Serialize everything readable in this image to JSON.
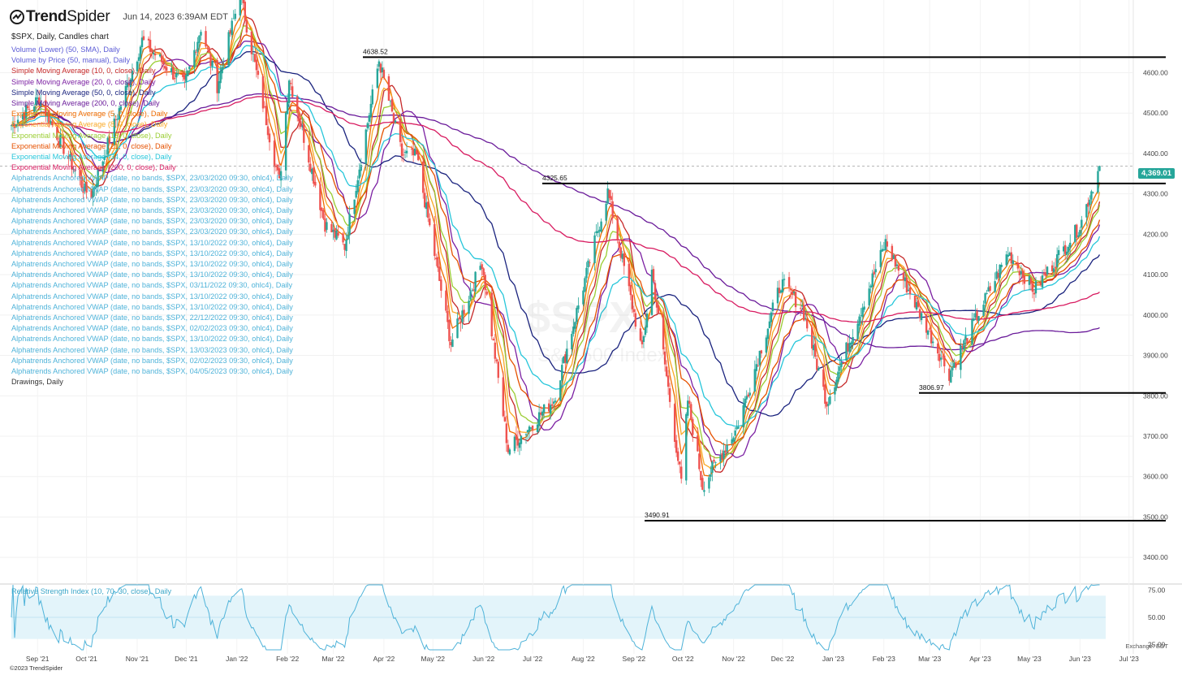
{
  "header": {
    "brand_bold": "Trend",
    "brand_light": "Spider",
    "datetime": "Jun 14, 2023 6:39AM EDT",
    "symbol_line": "$SPX, Daily, Candles chart"
  },
  "studies": [
    {
      "text": "Volume (Lower) (50, SMA), Daily",
      "color": "#5b5bd6"
    },
    {
      "text": "Volume by Price (50, manual), Daily",
      "color": "#5b5bd6"
    },
    {
      "text": "Simple Moving Average (10, 0, close), Daily",
      "color": "#c62828"
    },
    {
      "text": "Simple Moving Average (20, 0, close), Daily",
      "color": "#7b1fa2"
    },
    {
      "text": "Simple Moving Average (50, 0, close), Daily",
      "color": "#1a237e"
    },
    {
      "text": "Simple Moving Average (200, 0, close), Daily",
      "color": "#6a1b9a"
    },
    {
      "text": "Exponential Moving Average (5, 0, close), Daily",
      "color": "#ef6c00"
    },
    {
      "text": "Exponential Moving Average (8, 0, close), Daily",
      "color": "#f9a825"
    },
    {
      "text": "Exponential Moving Average (13, 0, close), Daily",
      "color": "#9acd32"
    },
    {
      "text": "Exponential Moving Average (21, 0, close), Daily",
      "color": "#e65100"
    },
    {
      "text": "Exponential Moving Average (34, 0, close), Daily",
      "color": "#26c6da"
    },
    {
      "text": "Exponential Moving Average (200, 0, close), Daily",
      "color": "#d81b60"
    },
    {
      "text": "Alphatrends Anchored VWAP (date, no bands, $SPX, 23/03/2020 09:30, ohlc4), Daily",
      "color": "#4fb3d9"
    },
    {
      "text": "Alphatrends Anchored VWAP (date, no bands, $SPX, 23/03/2020 09:30, ohlc4), Daily",
      "color": "#4fb3d9"
    },
    {
      "text": "Alphatrends Anchored VWAP (date, no bands, $SPX, 23/03/2020 09:30, ohlc4), Daily",
      "color": "#4fb3d9"
    },
    {
      "text": "Alphatrends Anchored VWAP (date, no bands, $SPX, 23/03/2020 09:30, ohlc4), Daily",
      "color": "#4fb3d9"
    },
    {
      "text": "Alphatrends Anchored VWAP (date, no bands, $SPX, 23/03/2020 09:30, ohlc4), Daily",
      "color": "#4fb3d9"
    },
    {
      "text": "Alphatrends Anchored VWAP (date, no bands, $SPX, 23/03/2020 09:30, ohlc4), Daily",
      "color": "#4fb3d9"
    },
    {
      "text": "Alphatrends Anchored VWAP (date, no bands, $SPX, 13/10/2022 09:30, ohlc4), Daily",
      "color": "#4fb3d9"
    },
    {
      "text": "Alphatrends Anchored VWAP (date, no bands, $SPX, 13/10/2022 09:30, ohlc4), Daily",
      "color": "#4fb3d9"
    },
    {
      "text": "Alphatrends Anchored VWAP (date, no bands, $SPX, 13/10/2022 09:30, ohlc4), Daily",
      "color": "#4fb3d9"
    },
    {
      "text": "Alphatrends Anchored VWAP (date, no bands, $SPX, 13/10/2022 09:30, ohlc4), Daily",
      "color": "#4fb3d9"
    },
    {
      "text": "Alphatrends Anchored VWAP (date, no bands, $SPX, 03/11/2022 09:30, ohlc4), Daily",
      "color": "#4fb3d9"
    },
    {
      "text": "Alphatrends Anchored VWAP (date, no bands, $SPX, 13/10/2022 09:30, ohlc4), Daily",
      "color": "#4fb3d9"
    },
    {
      "text": "Alphatrends Anchored VWAP (date, no bands, $SPX, 13/10/2022 09:30, ohlc4), Daily",
      "color": "#4fb3d9"
    },
    {
      "text": "Alphatrends Anchored VWAP (date, no bands, $SPX, 22/12/2022 09:30, ohlc4), Daily",
      "color": "#4fb3d9"
    },
    {
      "text": "Alphatrends Anchored VWAP (date, no bands, $SPX, 02/02/2023 09:30, ohlc4), Daily",
      "color": "#4fb3d9"
    },
    {
      "text": "Alphatrends Anchored VWAP (date, no bands, $SPX, 13/10/2022 09:30, ohlc4), Daily",
      "color": "#4fb3d9"
    },
    {
      "text": "Alphatrends Anchored VWAP (date, no bands, $SPX, 13/03/2023 09:30, ohlc4), Daily",
      "color": "#4fb3d9"
    },
    {
      "text": "Alphatrends Anchored VWAP (date, no bands, $SPX, 02/02/2023 09:30, ohlc4), Daily",
      "color": "#4fb3d9"
    },
    {
      "text": "Alphatrends Anchored VWAP (date, no bands, $SPX, 04/05/2023 09:30, ohlc4), Daily",
      "color": "#4fb3d9"
    },
    {
      "text": "Drawings, Daily",
      "color": "#333333"
    }
  ],
  "rsi_label": "Relative Strength Index (10, 70, 30, close), Daily",
  "copyright": "©2023 TrendSpider",
  "exchange": "Exchange: EDT",
  "last_price_label": "4,369.01",
  "watermark": {
    "symbol": "$SPX",
    "name": "S&P 500 Index"
  },
  "colors": {
    "up": "#26a69a",
    "down": "#ef5350",
    "hline": "#000000",
    "rsi_line": "#4fb3d9",
    "rsi_band": "#e3f4fa",
    "price_tag": "#26a69a"
  },
  "chart_data": {
    "type": "candlestick",
    "symbol": "$SPX",
    "interval": "Daily",
    "y_axis": {
      "ticks": [
        3400,
        3500,
        3600,
        3700,
        3800,
        3900,
        4000,
        4100,
        4200,
        4300,
        4400,
        4500,
        4600
      ],
      "tick_labels": [
        "3400.00",
        "3500.00",
        "3600.00",
        "3700.00",
        "3800.00",
        "3900.00",
        "4000.00",
        "4100.00",
        "4200.00",
        "4300.00",
        "4400.00",
        "4500.00",
        "4600.00"
      ],
      "range": [
        3340,
        4780
      ]
    },
    "x_axis": {
      "ticks": [
        "Sep '21",
        "Oct '21",
        "Nov '21",
        "Dec '21",
        "Jan '22",
        "Feb '22",
        "Mar '22",
        "Apr '22",
        "May '22",
        "Jun '22",
        "Jul '22",
        "Aug '22",
        "Sep '22",
        "Oct '22",
        "Nov '22",
        "Dec '22",
        "Jan '23",
        "Feb '23",
        "Mar '23",
        "Apr '23",
        "May '23",
        "Jun '23",
        "Jul '23"
      ]
    },
    "price_path": [
      [
        "2021-08-16",
        4470
      ],
      [
        "2021-09-02",
        4536
      ],
      [
        "2021-09-30",
        4307
      ],
      [
        "2021-10-04",
        4300
      ],
      [
        "2021-11-04",
        4680
      ],
      [
        "2021-11-30",
        4567
      ],
      [
        "2021-12-10",
        4712
      ],
      [
        "2021-12-20",
        4568
      ],
      [
        "2022-01-03",
        4796
      ],
      [
        "2022-01-27",
        4326
      ],
      [
        "2022-02-02",
        4589
      ],
      [
        "2022-02-24",
        4225
      ],
      [
        "2022-03-08",
        4170
      ],
      [
        "2022-03-29",
        4631
      ],
      [
        "2022-04-12",
        4397
      ],
      [
        "2022-04-21",
        4393
      ],
      [
        "2022-05-12",
        3930
      ],
      [
        "2022-05-31",
        4132
      ],
      [
        "2022-06-16",
        3666
      ],
      [
        "2022-07-14",
        3790
      ],
      [
        "2022-08-16",
        4305
      ],
      [
        "2022-09-06",
        3910
      ],
      [
        "2022-09-12",
        4110
      ],
      [
        "2022-09-30",
        3585
      ],
      [
        "2022-10-04",
        3790
      ],
      [
        "2022-10-13",
        3577
      ],
      [
        "2022-11-03",
        3720
      ],
      [
        "2022-11-30",
        4080
      ],
      [
        "2022-12-13",
        4019
      ],
      [
        "2022-12-28",
        3783
      ],
      [
        "2023-02-02",
        4179
      ],
      [
        "2023-03-13",
        3855
      ],
      [
        "2023-04-18",
        4155
      ],
      [
        "2023-05-04",
        4061
      ],
      [
        "2023-06-01",
        4221
      ],
      [
        "2023-06-13",
        4369
      ]
    ],
    "horizontal_levels": [
      {
        "label": "4638.52",
        "value": 4638.52
      },
      {
        "label": "4325.65",
        "value": 4325.65
      },
      {
        "label": "3806.97",
        "value": 3806.97
      },
      {
        "label": "3490.91",
        "value": 3490.91
      }
    ],
    "last_price": 4369.01,
    "moving_averages": [
      {
        "name": "SMA 10",
        "color": "#c62828",
        "period": 10
      },
      {
        "name": "SMA 20",
        "color": "#7b1fa2",
        "period": 20
      },
      {
        "name": "SMA 50",
        "color": "#1a237e",
        "period": 50
      },
      {
        "name": "SMA 200",
        "color": "#6a1b9a",
        "period": 200
      },
      {
        "name": "EMA 5",
        "color": "#ef6c00",
        "period": 5
      },
      {
        "name": "EMA 8",
        "color": "#f9a825",
        "period": 8
      },
      {
        "name": "EMA 13",
        "color": "#9acd32",
        "period": 13
      },
      {
        "name": "EMA 21",
        "color": "#e65100",
        "period": 21
      },
      {
        "name": "EMA 34",
        "color": "#26c6da",
        "period": 34
      },
      {
        "name": "EMA 200",
        "color": "#d81b60",
        "period": 200
      }
    ],
    "rsi": {
      "period": 10,
      "upper": 70,
      "lower": 30,
      "ticks": [
        25,
        50,
        75
      ],
      "tick_labels": [
        "25.00",
        "50.00",
        "75.00"
      ],
      "range": [
        20,
        80
      ],
      "last": 77
    }
  }
}
